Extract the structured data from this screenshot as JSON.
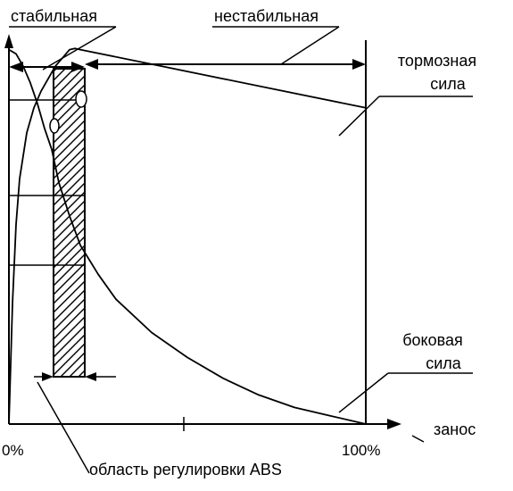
{
  "chart_data": {
    "type": "line",
    "title": "",
    "xlabel": "занос",
    "ylabel": "",
    "xlim": [
      0,
      100
    ],
    "ylim": [
      0,
      1
    ],
    "x_ticks": [
      "0%",
      "100%"
    ],
    "grid": false,
    "legend": "none",
    "zones": {
      "stable_label": "стабильная",
      "unstable_label": "нестабильная",
      "abs_label": "область регулировки ABS",
      "abs_range": [
        12.5,
        21
      ]
    },
    "series": [
      {
        "name": "тормозная сила",
        "label_lines": [
          "тормозная",
          "сила"
        ],
        "x": [
          0,
          1,
          2,
          3,
          5,
          7,
          9,
          11,
          13,
          15,
          17,
          18.5,
          20,
          40,
          60,
          80,
          100
        ],
        "y": [
          0.0,
          0.29,
          0.48,
          0.59,
          0.7,
          0.76,
          0.8,
          0.83,
          0.86,
          0.88,
          0.9,
          0.903,
          0.9,
          0.865,
          0.83,
          0.795,
          0.76
        ]
      },
      {
        "name": "боковая сила",
        "label_lines": [
          "боковая",
          "сила"
        ],
        "x": [
          0,
          2,
          4,
          6,
          8,
          10,
          12,
          14,
          17,
          20,
          25,
          30,
          40,
          50,
          60,
          70,
          80,
          90,
          100
        ],
        "y": [
          0.9,
          0.89,
          0.86,
          0.82,
          0.77,
          0.71,
          0.66,
          0.58,
          0.5,
          0.43,
          0.36,
          0.3,
          0.22,
          0.16,
          0.11,
          0.07,
          0.04,
          0.02,
          0.0
        ]
      }
    ]
  }
}
